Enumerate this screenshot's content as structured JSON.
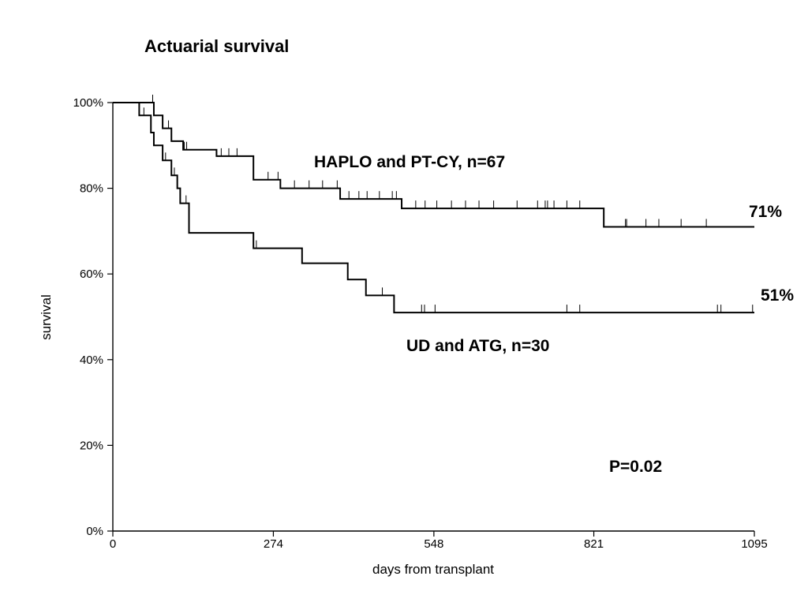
{
  "chart_data": {
    "type": "line",
    "title": "Actuarial survival",
    "xlabel": "days from transplant",
    "ylabel": "survival",
    "xlim": [
      0,
      1095
    ],
    "ylim": [
      0,
      100
    ],
    "x_ticks": [
      0,
      274,
      548,
      821,
      1095
    ],
    "y_ticks": [
      0,
      20,
      40,
      60,
      80,
      100
    ],
    "y_tick_labels": [
      "0%",
      "20%",
      "40%",
      "60%",
      "80%",
      "100%"
    ],
    "grid": false,
    "series": [
      {
        "name": "HAPLO and PT-CY, n=67",
        "step_x": [
          0,
          70,
          85,
          100,
          120,
          177,
          240,
          286,
          388,
          493,
          838,
          1095
        ],
        "step_y": [
          100,
          97,
          94,
          91,
          89,
          87.5,
          82,
          80,
          77.5,
          75.3,
          71,
          71
        ],
        "censor_x": [
          68,
          95,
          122,
          126,
          185,
          198,
          212,
          265,
          282,
          310,
          335,
          358,
          383,
          403,
          420,
          434,
          455,
          477,
          484,
          517,
          533,
          553,
          578,
          602,
          625,
          650,
          690,
          725,
          738,
          742,
          753,
          775,
          797,
          875,
          877,
          910,
          932,
          970,
          1013
        ],
        "end_label": "71%"
      },
      {
        "name": "UD and ATG, n=30",
        "step_x": [
          0,
          45,
          65,
          70,
          85,
          100,
          110,
          115,
          130,
          240,
          323,
          401,
          432,
          480,
          1095
        ],
        "step_y": [
          100,
          97,
          93,
          90,
          86.5,
          83,
          80,
          76.5,
          69.6,
          66,
          62.5,
          58.7,
          55,
          51,
          51
        ],
        "censor_x": [
          53,
          90,
          105,
          125,
          245,
          460,
          527,
          532,
          550,
          775,
          797,
          1032,
          1038,
          1092
        ],
        "end_label": "51%"
      }
    ],
    "annotations": [
      {
        "text": "P=0.02"
      }
    ]
  }
}
